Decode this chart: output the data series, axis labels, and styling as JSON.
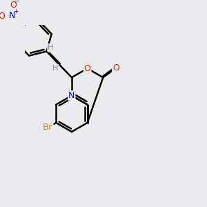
{
  "background_color": "#ebebed",
  "bond_color": "#000000",
  "bond_width": 1.8,
  "atom_colors": {
    "N": "#0000cc",
    "O": "#cc2200",
    "Br": "#cc8800",
    "H_vinyl": "#7788aa",
    "NO2_N": "#0000cc",
    "NO2_O": "#cc2200"
  },
  "font_size_atom": 9,
  "font_size_small": 7
}
